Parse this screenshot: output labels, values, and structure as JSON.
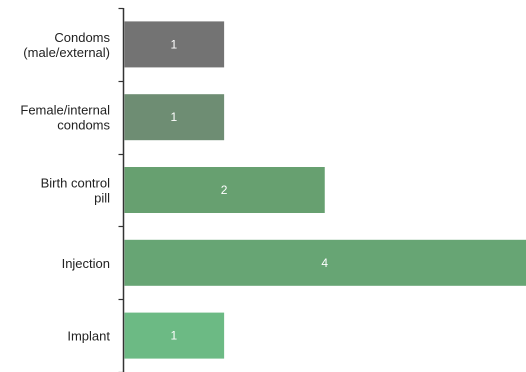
{
  "chart_data": {
    "type": "bar",
    "orientation": "horizontal",
    "categories": [
      [
        "Condoms",
        "(male/external)"
      ],
      [
        "Female/internal",
        "condoms"
      ],
      [
        "Birth control",
        "pill"
      ],
      [
        "Injection"
      ],
      [
        "Implant"
      ]
    ],
    "values": [
      1,
      1,
      2,
      4,
      1
    ],
    "data_labels": [
      "1",
      "1",
      "2",
      "4",
      "1"
    ],
    "colors": [
      "#737373",
      "#6e8d73",
      "#67a070",
      "#67a574",
      "#6cba84"
    ],
    "xlim": [
      0,
      4
    ],
    "grid": false,
    "legend": "none"
  }
}
